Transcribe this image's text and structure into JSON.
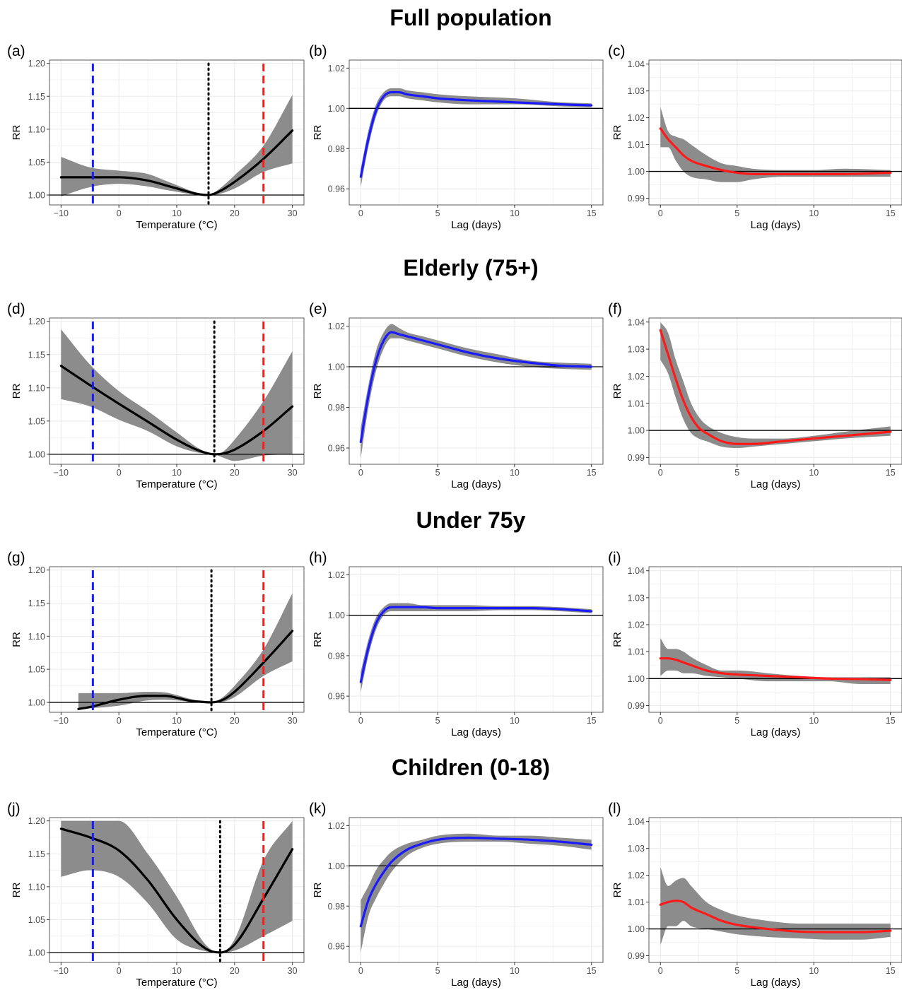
{
  "rows": [
    {
      "title": "Full population"
    },
    {
      "title": "Elderly (75+)"
    },
    {
      "title": "Under 75y"
    },
    {
      "title": "Children (0-18)"
    }
  ],
  "colors": {
    "cold": "#1a1aff",
    "heat": "#ff1a1a",
    "overall": "#000000",
    "band": "#8c8c8c",
    "grid": "#ebebeb"
  },
  "chart_data": [
    {
      "label": "(a)",
      "type": "line",
      "kind": "overall",
      "line_color": "#000000",
      "xlabel": "Temperature (°C)",
      "ylabel": "RR",
      "xlim": [
        -12,
        32
      ],
      "ylim": [
        0.985,
        1.205
      ],
      "xticks": [
        -10,
        0,
        10,
        20,
        30
      ],
      "yticks": [
        1.0,
        1.05,
        1.1,
        1.15,
        1.2
      ],
      "ytick_decimals": 2,
      "refline": 1.0,
      "vlines": [
        {
          "x": -4.5,
          "style": "cold"
        },
        {
          "x": 15.5,
          "style": "mmt"
        },
        {
          "x": 25,
          "style": "heat"
        }
      ],
      "x": [
        -10,
        -5,
        0,
        5,
        8,
        10,
        12,
        14,
        15.5,
        17,
        20,
        25,
        30
      ],
      "y": [
        1.027,
        1.027,
        1.027,
        1.022,
        1.015,
        1.01,
        1.005,
        1.001,
        1.0,
        1.004,
        1.02,
        1.055,
        1.098
      ],
      "lower": [
        0.998,
        1.012,
        1.017,
        1.013,
        1.008,
        1.005,
        1.002,
        1.0,
        1.0,
        1.001,
        1.01,
        1.035,
        1.048
      ],
      "upper": [
        1.058,
        1.042,
        1.037,
        1.032,
        1.022,
        1.015,
        1.008,
        1.002,
        1.0,
        1.007,
        1.03,
        1.075,
        1.152
      ]
    },
    {
      "label": "(b)",
      "type": "line",
      "kind": "lag",
      "line_color": "#1a1aff",
      "xlabel": "Lag (days)",
      "ylabel": "RR",
      "xlim": [
        -0.75,
        15.75
      ],
      "ylim": [
        0.952,
        1.024
      ],
      "xticks": [
        0,
        5,
        10,
        15
      ],
      "yticks": [
        0.96,
        0.98,
        1.0,
        1.02
      ],
      "ytick_decimals": 2,
      "refline": 1.0,
      "x": [
        0,
        0.5,
        1,
        1.5,
        2,
        2.5,
        3,
        4,
        5,
        7,
        10,
        13,
        15
      ],
      "y": [
        0.966,
        0.985,
        0.999,
        1.006,
        1.008,
        1.008,
        1.007,
        1.006,
        1.005,
        1.004,
        1.003,
        1.002,
        1.0015
      ],
      "lower": [
        0.961,
        0.981,
        0.996,
        1.004,
        1.006,
        1.006,
        1.005,
        1.004,
        1.003,
        1.002,
        1.002,
        1.001,
        1.0005
      ],
      "upper": [
        0.97,
        0.989,
        1.002,
        1.008,
        1.01,
        1.01,
        1.009,
        1.008,
        1.007,
        1.006,
        1.005,
        1.003,
        1.0025
      ]
    },
    {
      "label": "(c)",
      "type": "line",
      "kind": "lag",
      "line_color": "#ff1a1a",
      "xlabel": "Lag (days)",
      "ylabel": "RR",
      "xlim": [
        -0.75,
        15.75
      ],
      "ylim": [
        0.9875,
        1.0415
      ],
      "xticks": [
        0,
        5,
        10,
        15
      ],
      "yticks": [
        0.99,
        1.0,
        1.01,
        1.02,
        1.03,
        1.04
      ],
      "ytick_decimals": 2,
      "refline": 1.0,
      "x": [
        0,
        0.5,
        1,
        1.5,
        2,
        3,
        4,
        5,
        6,
        8,
        10,
        12,
        15
      ],
      "y": [
        1.016,
        1.012,
        1.009,
        1.006,
        1.004,
        1.002,
        1.0005,
        0.9995,
        0.999,
        0.999,
        0.999,
        0.999,
        0.9995
      ],
      "lower": [
        1.009,
        1.009,
        1.004,
        1.0,
        0.998,
        0.997,
        0.996,
        0.996,
        0.997,
        0.998,
        0.998,
        0.998,
        0.998
      ],
      "upper": [
        1.024,
        1.015,
        1.013,
        1.012,
        1.01,
        1.006,
        1.003,
        1.002,
        1.001,
        1.0005,
        1.0005,
        1.001,
        1.0005
      ]
    },
    {
      "label": "(d)",
      "type": "line",
      "kind": "overall",
      "line_color": "#000000",
      "xlabel": "Temperature (°C)",
      "ylabel": "RR",
      "xlim": [
        -12,
        32
      ],
      "ylim": [
        0.985,
        1.205
      ],
      "xticks": [
        -10,
        0,
        10,
        20,
        30
      ],
      "yticks": [
        1.0,
        1.05,
        1.1,
        1.15,
        1.2
      ],
      "ytick_decimals": 2,
      "refline": 1.0,
      "vlines": [
        {
          "x": -4.5,
          "style": "cold"
        },
        {
          "x": 16.5,
          "style": "mmt"
        },
        {
          "x": 25,
          "style": "heat"
        }
      ],
      "x": [
        -10,
        -5,
        0,
        5,
        10,
        14,
        16.5,
        18,
        20,
        25,
        30
      ],
      "y": [
        1.133,
        1.104,
        1.076,
        1.049,
        1.022,
        1.005,
        1.0,
        1.001,
        1.007,
        1.035,
        1.072
      ],
      "lower": [
        1.083,
        1.072,
        1.052,
        1.035,
        1.012,
        1.002,
        1.0,
        0.995,
        0.99,
        0.998,
        1.0
      ],
      "upper": [
        1.188,
        1.135,
        1.095,
        1.065,
        1.033,
        1.008,
        1.0,
        1.004,
        1.022,
        1.08,
        1.155
      ]
    },
    {
      "label": "(e)",
      "type": "line",
      "kind": "lag",
      "line_color": "#1a1aff",
      "xlabel": "Lag (days)",
      "ylabel": "RR",
      "xlim": [
        -0.75,
        15.75
      ],
      "ylim": [
        0.952,
        1.024
      ],
      "xticks": [
        0,
        5,
        10,
        15
      ],
      "yticks": [
        0.96,
        0.98,
        1.0,
        1.02
      ],
      "ytick_decimals": 2,
      "refline": 1.0,
      "x": [
        0,
        0.5,
        1,
        1.5,
        2,
        2.5,
        3,
        4,
        5,
        7,
        9,
        11,
        13,
        15
      ],
      "y": [
        0.963,
        0.986,
        1.003,
        1.013,
        1.017,
        1.016,
        1.015,
        1.013,
        1.011,
        1.007,
        1.004,
        1.002,
        1.0005,
        1.0
      ],
      "lower": [
        0.955,
        0.98,
        0.998,
        1.009,
        1.014,
        1.014,
        1.013,
        1.011,
        1.009,
        1.005,
        1.002,
        1.0,
        0.999,
        0.9985
      ],
      "upper": [
        0.97,
        0.991,
        1.008,
        1.017,
        1.021,
        1.019,
        1.017,
        1.015,
        1.013,
        1.009,
        1.006,
        1.003,
        1.002,
        1.0015
      ]
    },
    {
      "label": "(f)",
      "type": "line",
      "kind": "lag",
      "line_color": "#ff1a1a",
      "xlabel": "Lag (days)",
      "ylabel": "RR",
      "xlim": [
        -0.75,
        15.75
      ],
      "ylim": [
        0.9875,
        1.0415
      ],
      "xticks": [
        0,
        5,
        10,
        15
      ],
      "yticks": [
        0.99,
        1.0,
        1.01,
        1.02,
        1.03,
        1.04
      ],
      "ytick_decimals": 2,
      "refline": 1.0,
      "x": [
        0,
        0.5,
        1,
        1.5,
        2,
        2.5,
        3,
        4,
        5,
        6,
        8,
        10,
        12,
        15
      ],
      "y": [
        1.037,
        1.028,
        1.019,
        1.011,
        1.005,
        1.001,
        0.999,
        0.996,
        0.995,
        0.995,
        0.996,
        0.997,
        0.998,
        0.9995
      ],
      "lower": [
        1.026,
        1.021,
        1.012,
        1.004,
        0.999,
        0.997,
        0.996,
        0.994,
        0.9935,
        0.994,
        0.995,
        0.996,
        0.997,
        0.998
      ],
      "upper": [
        1.04,
        1.036,
        1.026,
        1.018,
        1.01,
        1.005,
        1.002,
        0.999,
        0.9975,
        0.997,
        0.997,
        0.998,
        0.9995,
        1.0015
      ]
    },
    {
      "label": "(g)",
      "type": "line",
      "kind": "overall",
      "line_color": "#000000",
      "xlabel": "Temperature (°C)",
      "ylabel": "RR",
      "xlim": [
        -12,
        32
      ],
      "ylim": [
        0.985,
        1.205
      ],
      "xticks": [
        -10,
        0,
        10,
        20,
        30
      ],
      "yticks": [
        1.0,
        1.05,
        1.1,
        1.15,
        1.2
      ],
      "ytick_decimals": 2,
      "refline": 1.0,
      "vlines": [
        {
          "x": -4.5,
          "style": "cold"
        },
        {
          "x": 16,
          "style": "mmt"
        },
        {
          "x": 25,
          "style": "heat"
        }
      ],
      "x": [
        -7,
        -5,
        0,
        5,
        8,
        10,
        12,
        14,
        16,
        18,
        20,
        25,
        30
      ],
      "y": [
        0.99,
        0.993,
        1.004,
        1.01,
        1.01,
        1.007,
        1.003,
        1.001,
        1.0,
        1.004,
        1.016,
        1.06,
        1.108
      ],
      "lower": [
        0.99,
        0.991,
        0.995,
        1.003,
        1.004,
        1.003,
        1.001,
        1.0,
        1.0,
        1.001,
        1.008,
        1.04,
        1.062
      ],
      "upper": [
        1.014,
        1.014,
        1.014,
        1.016,
        1.015,
        1.011,
        1.006,
        1.002,
        1.0,
        1.008,
        1.025,
        1.08,
        1.165
      ]
    },
    {
      "label": "(h)",
      "type": "line",
      "kind": "lag",
      "line_color": "#1a1aff",
      "xlabel": "Lag (days)",
      "ylabel": "RR",
      "xlim": [
        -0.75,
        15.75
      ],
      "ylim": [
        0.952,
        1.024
      ],
      "xticks": [
        0,
        5,
        10,
        15
      ],
      "yticks": [
        0.96,
        0.98,
        1.0,
        1.02
      ],
      "ytick_decimals": 2,
      "refline": 1.0,
      "x": [
        0,
        0.5,
        1,
        1.5,
        2,
        3,
        4,
        5,
        7,
        9,
        11,
        13,
        15
      ],
      "y": [
        0.967,
        0.984,
        0.996,
        1.002,
        1.004,
        1.004,
        1.004,
        1.0035,
        1.0035,
        1.0035,
        1.0035,
        1.003,
        1.002
      ],
      "lower": [
        0.962,
        0.98,
        0.993,
        1.0,
        1.002,
        1.002,
        1.002,
        1.002,
        1.002,
        1.0025,
        1.0025,
        1.002,
        1.001
      ],
      "upper": [
        0.972,
        0.988,
        0.999,
        1.004,
        1.006,
        1.006,
        1.005,
        1.005,
        1.005,
        1.0045,
        1.0045,
        1.004,
        1.003
      ]
    },
    {
      "label": "(i)",
      "type": "line",
      "kind": "lag",
      "line_color": "#ff1a1a",
      "xlabel": "Lag (days)",
      "ylabel": "RR",
      "xlim": [
        -0.75,
        15.75
      ],
      "ylim": [
        0.9875,
        1.0415
      ],
      "xticks": [
        0,
        5,
        10,
        15
      ],
      "yticks": [
        0.99,
        1.0,
        1.01,
        1.02,
        1.03,
        1.04
      ],
      "ytick_decimals": 2,
      "refline": 1.0,
      "x": [
        0,
        0.5,
        1,
        1.5,
        2,
        3,
        4,
        5,
        7,
        9,
        11,
        13,
        15
      ],
      "y": [
        1.0075,
        1.0075,
        1.007,
        1.006,
        1.005,
        1.003,
        1.002,
        1.0015,
        1.001,
        1.0005,
        1.0,
        0.9998,
        0.9995
      ],
      "lower": [
        1.001,
        1.003,
        1.003,
        1.002,
        1.002,
        1.001,
        1.0005,
        1.0,
        0.999,
        0.999,
        0.999,
        0.998,
        0.998
      ],
      "upper": [
        1.015,
        1.011,
        1.011,
        1.01,
        1.008,
        1.005,
        1.003,
        1.003,
        1.002,
        1.001,
        1.0005,
        1.0005,
        1.0005
      ]
    },
    {
      "label": "(j)",
      "type": "line",
      "kind": "overall",
      "line_color": "#000000",
      "xlabel": "Temperature (°C)",
      "ylabel": "RR",
      "xlim": [
        -12,
        32
      ],
      "ylim": [
        0.985,
        1.205
      ],
      "xticks": [
        -10,
        0,
        10,
        20,
        30
      ],
      "yticks": [
        1.0,
        1.05,
        1.1,
        1.15,
        1.2
      ],
      "ytick_decimals": 2,
      "refline": 1.0,
      "vlines": [
        {
          "x": -4.5,
          "style": "cold"
        },
        {
          "x": 17.5,
          "style": "mmt"
        },
        {
          "x": 25,
          "style": "heat"
        }
      ],
      "x": [
        -10,
        -5,
        0,
        5,
        10,
        15,
        17.5,
        20,
        25,
        30
      ],
      "y": [
        1.188,
        1.175,
        1.155,
        1.11,
        1.05,
        1.006,
        1.0,
        1.012,
        1.082,
        1.157
      ],
      "lower": [
        1.115,
        1.125,
        1.115,
        1.075,
        1.02,
        1.002,
        1.0,
        1.003,
        1.025,
        1.048
      ],
      "upper": [
        1.2,
        1.2,
        1.2,
        1.15,
        1.085,
        1.012,
        1.0,
        1.02,
        1.14,
        1.2
      ]
    },
    {
      "label": "(k)",
      "type": "line",
      "kind": "lag",
      "line_color": "#1a1aff",
      "xlabel": "Lag (days)",
      "ylabel": "RR",
      "xlim": [
        -0.75,
        15.75
      ],
      "ylim": [
        0.952,
        1.024
      ],
      "xticks": [
        0,
        5,
        10,
        15
      ],
      "yticks": [
        0.96,
        0.98,
        1.0,
        1.02
      ],
      "ytick_decimals": 2,
      "refline": 1.0,
      "x": [
        0,
        0.5,
        1,
        1.5,
        2,
        3,
        4,
        5,
        7,
        9,
        11,
        13,
        15
      ],
      "y": [
        0.97,
        0.983,
        0.991,
        0.997,
        1.002,
        1.008,
        1.011,
        1.013,
        1.014,
        1.0135,
        1.013,
        1.012,
        1.0105
      ],
      "lower": [
        0.957,
        0.975,
        0.984,
        0.991,
        0.997,
        1.005,
        1.009,
        1.011,
        1.012,
        1.012,
        1.011,
        1.01,
        1.008
      ],
      "upper": [
        0.983,
        0.99,
        0.998,
        1.003,
        1.007,
        1.011,
        1.013,
        1.015,
        1.016,
        1.015,
        1.015,
        1.014,
        1.013
      ]
    },
    {
      "label": "(l)",
      "type": "line",
      "kind": "lag",
      "line_color": "#ff1a1a",
      "xlabel": "Lag (days)",
      "ylabel": "RR",
      "xlim": [
        -0.75,
        15.75
      ],
      "ylim": [
        0.9875,
        1.0415
      ],
      "xticks": [
        0,
        5,
        10,
        15
      ],
      "yticks": [
        0.99,
        1.0,
        1.01,
        1.02,
        1.03,
        1.04
      ],
      "ytick_decimals": 2,
      "refline": 1.0,
      "x": [
        0,
        0.5,
        1,
        1.5,
        2,
        3,
        4,
        5,
        7,
        9,
        11,
        13,
        15
      ],
      "y": [
        1.009,
        1.01,
        1.0105,
        1.01,
        1.008,
        1.0055,
        1.003,
        1.0015,
        1.0,
        0.999,
        0.9988,
        0.9988,
        0.9993
      ],
      "lower": [
        0.994,
        1.001,
        1.001,
        1.003,
        1.001,
        1.0,
        0.999,
        0.998,
        0.997,
        0.9965,
        0.996,
        0.996,
        0.997
      ],
      "upper": [
        1.023,
        1.016,
        1.018,
        1.019,
        1.016,
        1.01,
        1.007,
        1.005,
        1.003,
        1.002,
        1.002,
        1.002,
        1.002
      ]
    }
  ]
}
